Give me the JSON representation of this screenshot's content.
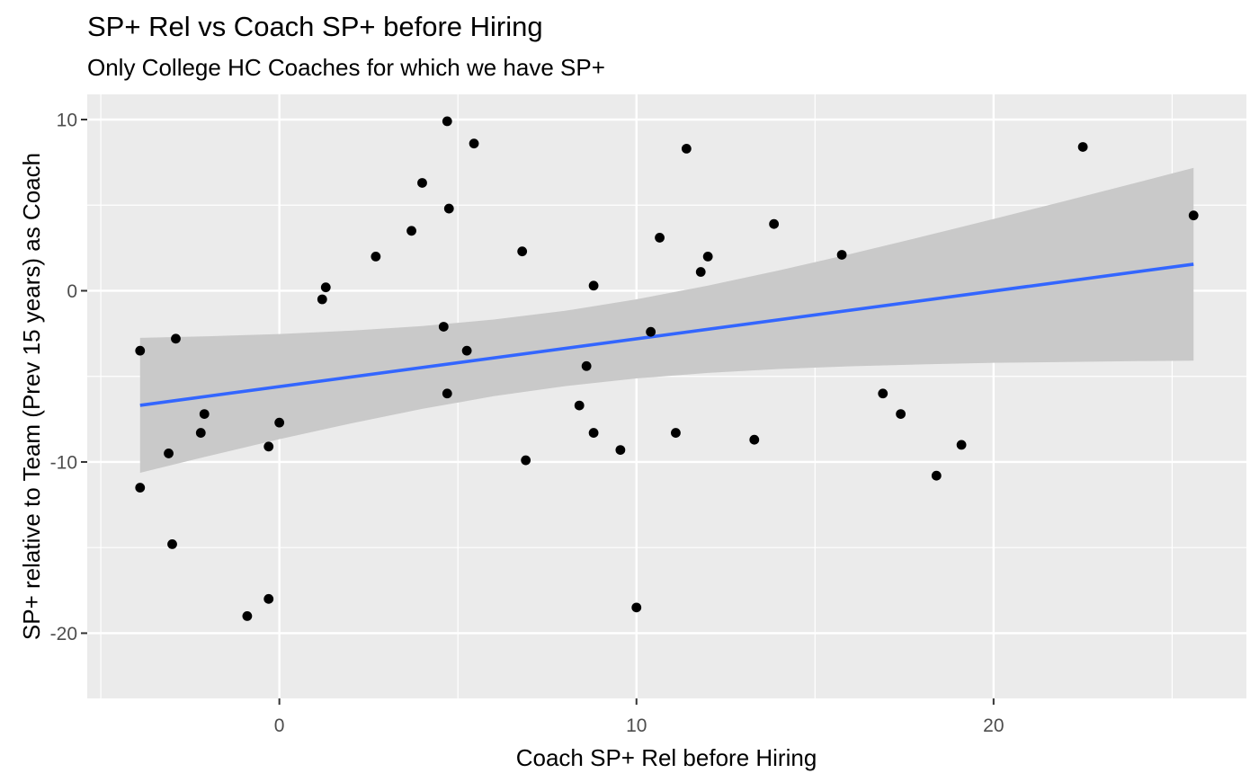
{
  "title": "SP+ Rel vs Coach SP+ before Hiring",
  "subtitle": "Only College HC Coaches for which we have SP+",
  "chart_data": {
    "type": "scatter",
    "title": "SP+ Rel vs Coach SP+ before Hiring",
    "subtitle": "Only College HC Coaches for which we have SP+",
    "xlabel": "Coach SP+ Rel before Hiring",
    "ylabel": "SP+ relative to Team (Prev 15 years) as Coach",
    "xlim": [
      -5.38,
      27.08
    ],
    "ylim": [
      -23.81,
      11.47
    ],
    "grid": "on",
    "legend": "none",
    "x_ticks_major": [
      0,
      10,
      20
    ],
    "x_tick_labels": [
      "0",
      "10",
      "20"
    ],
    "x_gridlines_minor": [
      -5,
      5,
      15,
      25
    ],
    "y_ticks_major": [
      10,
      0,
      -10,
      -20
    ],
    "y_tick_labels": [
      "10",
      "0",
      "-10",
      "-20"
    ],
    "y_gridlines_minor": [
      5,
      -5,
      -15
    ],
    "points": [
      [
        -3.9,
        -3.5
      ],
      [
        -2.9,
        -2.8
      ],
      [
        -2.1,
        -7.2
      ],
      [
        -2.2,
        -8.3
      ],
      [
        -3.1,
        -9.5
      ],
      [
        -3.9,
        -11.5
      ],
      [
        -3.0,
        -14.8
      ],
      [
        -0.9,
        -19.0
      ],
      [
        -0.3,
        -18.0
      ],
      [
        0.0,
        -7.7
      ],
      [
        -0.3,
        -9.1
      ],
      [
        1.3,
        0.2
      ],
      [
        1.2,
        -0.5
      ],
      [
        2.7,
        2.0
      ],
      [
        3.7,
        3.5
      ],
      [
        4.0,
        6.3
      ],
      [
        4.7,
        9.9
      ],
      [
        4.75,
        4.8
      ],
      [
        5.45,
        8.6
      ],
      [
        4.6,
        -2.1
      ],
      [
        5.25,
        -3.5
      ],
      [
        4.7,
        -6.0
      ],
      [
        6.8,
        2.3
      ],
      [
        6.9,
        -9.9
      ],
      [
        8.8,
        0.3
      ],
      [
        8.6,
        -4.4
      ],
      [
        8.4,
        -6.7
      ],
      [
        8.8,
        -8.3
      ],
      [
        9.55,
        -9.3
      ],
      [
        10.0,
        -18.5
      ],
      [
        10.65,
        3.1
      ],
      [
        10.4,
        -2.4
      ],
      [
        11.4,
        8.3
      ],
      [
        11.8,
        1.1
      ],
      [
        12.0,
        2.0
      ],
      [
        11.1,
        -8.3
      ],
      [
        13.3,
        -8.7
      ],
      [
        13.85,
        3.9
      ],
      [
        15.75,
        2.1
      ],
      [
        16.9,
        -6.0
      ],
      [
        17.4,
        -7.2
      ],
      [
        18.4,
        -10.8
      ],
      [
        19.1,
        -9.0
      ],
      [
        22.5,
        8.4
      ],
      [
        25.6,
        4.4
      ]
    ],
    "trend": {
      "type": "lm",
      "x1": -3.9,
      "y1": -6.69,
      "x2": 25.6,
      "y2": 1.55
    },
    "ci_band": {
      "x": [
        -3.9,
        -2.0,
        0.0,
        2.0,
        4.0,
        6.0,
        8.0,
        10.0,
        12.0,
        14.0,
        16.0,
        18.0,
        20.0,
        22.0,
        24.0,
        25.6
      ],
      "top": [
        -2.75,
        -2.66,
        -2.53,
        -2.33,
        -2.06,
        -1.68,
        -1.17,
        -0.5,
        0.3,
        1.19,
        2.15,
        3.16,
        4.19,
        5.24,
        6.31,
        7.18
      ],
      "bottom": [
        -10.63,
        -9.66,
        -8.67,
        -7.75,
        -6.9,
        -6.16,
        -5.57,
        -5.12,
        -4.8,
        -4.57,
        -4.41,
        -4.3,
        -4.21,
        -4.16,
        -4.11,
        -4.08
      ]
    },
    "colors": {
      "panel_bg": "#EBEBEB",
      "gridline": "#FFFFFF",
      "point": "#000000",
      "trend_line": "#3366FF",
      "ci_band": "#C9C9C9",
      "tick_text": "#4D4D4D",
      "tick_mark": "#333333",
      "title_text": "#000000"
    }
  }
}
